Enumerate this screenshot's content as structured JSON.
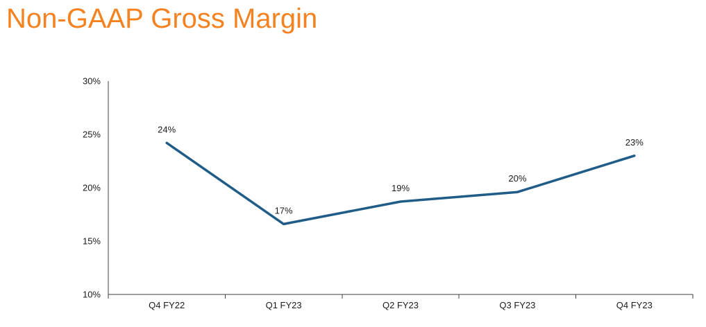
{
  "colors": {
    "title": "#f58220",
    "series": "#1f5c87",
    "axis": "#3f3f3f",
    "text": "#1a1a1a"
  },
  "chart_data": {
    "type": "line",
    "title": "Non-GAAP Gross Margin",
    "xlabel": "",
    "ylabel": "",
    "categories": [
      "Q4 FY22",
      "Q1 FY23",
      "Q2 FY23",
      "Q3 FY23",
      "Q4 FY23"
    ],
    "series": [
      {
        "name": "Non-GAAP Gross Margin",
        "values": [
          24.2,
          16.6,
          18.7,
          19.6,
          23.0
        ],
        "data_labels": [
          "24%",
          "17%",
          "19%",
          "20%",
          "23%"
        ]
      }
    ],
    "ylim": [
      10,
      30
    ],
    "yticks": [
      10,
      15,
      20,
      25,
      30
    ],
    "ytick_labels": [
      "10%",
      "15%",
      "20%",
      "25%",
      "30%"
    ],
    "grid": false,
    "legend": "none"
  }
}
